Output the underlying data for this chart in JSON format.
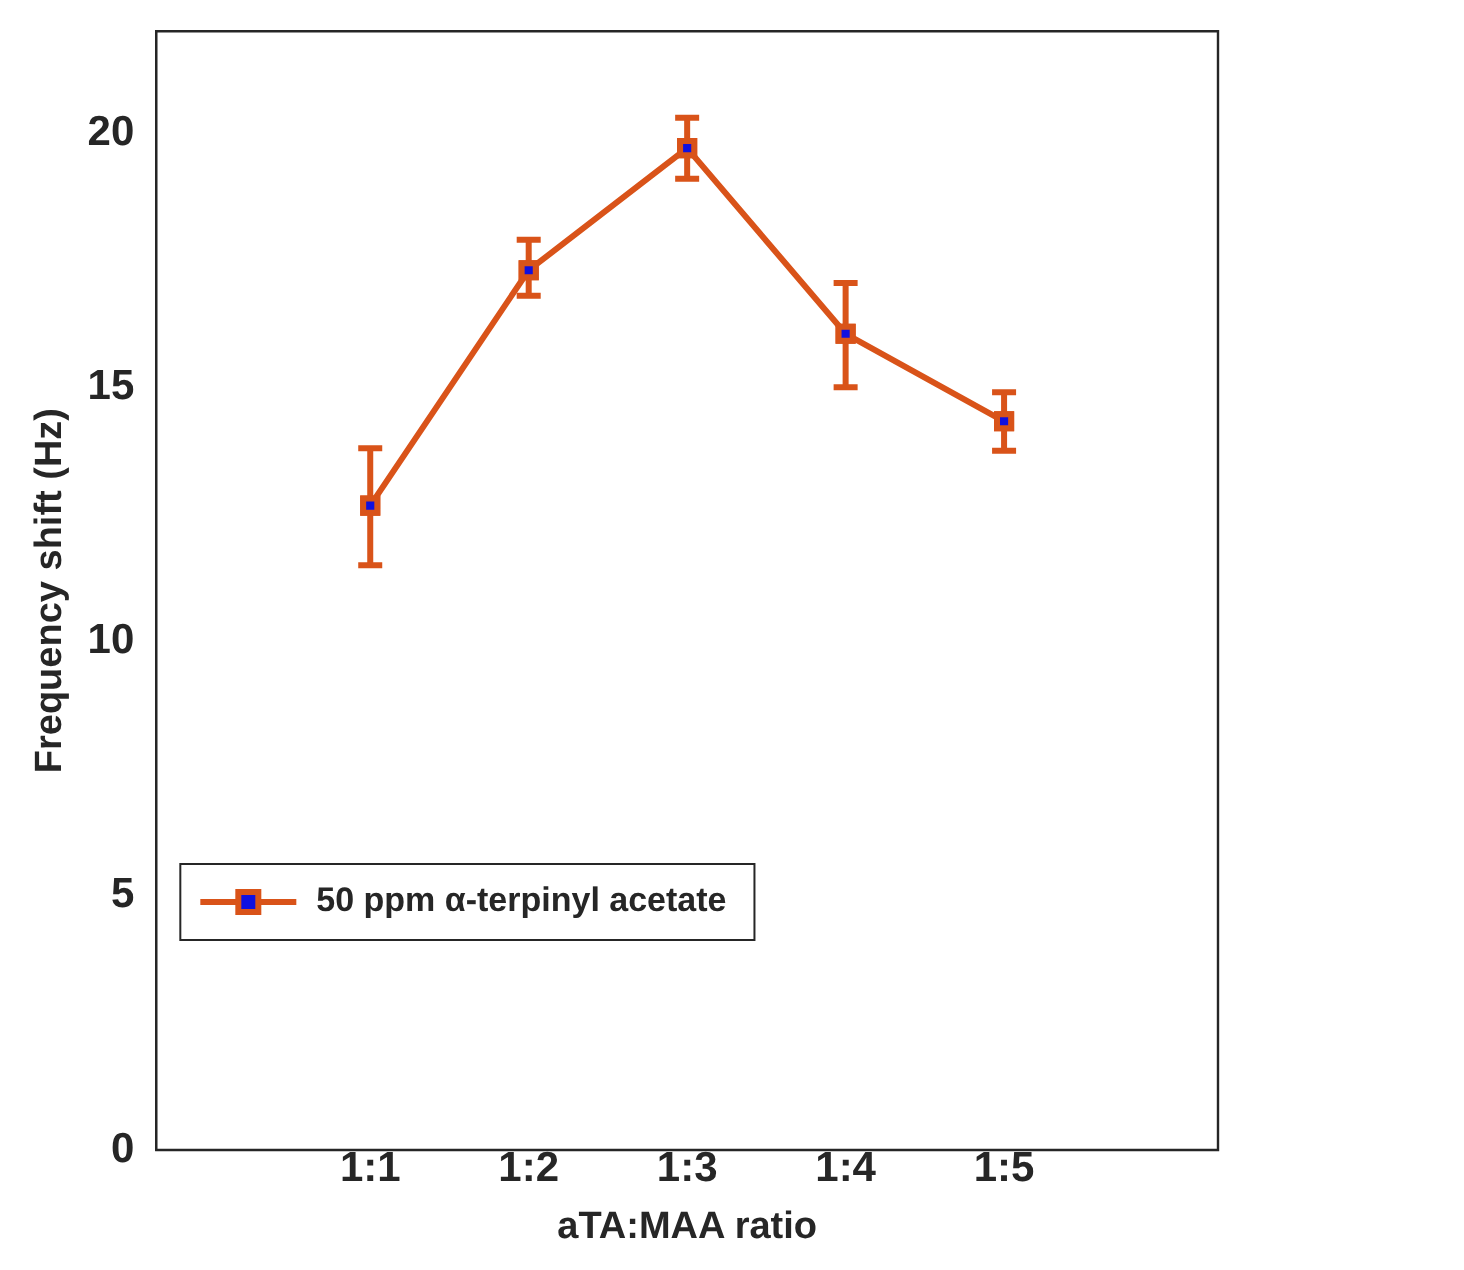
{
  "chart_data": {
    "type": "line",
    "xlabel": "aTA:MAA ratio",
    "ylabel": "Frequency shift (Hz)",
    "categories": [
      "1:1",
      "1:2",
      "1:3",
      "1:4",
      "1:5"
    ],
    "series": [
      {
        "name": "50 ppm α-terpinyl acetate",
        "color": "#d95319",
        "values": [
          12.67,
          17.3,
          19.7,
          16.05,
          14.33
        ],
        "errors": [
          [
            11.5,
            13.8
          ],
          [
            16.8,
            17.9
          ],
          [
            19.1,
            20.3
          ],
          [
            15.0,
            17.05
          ],
          [
            13.75,
            14.9
          ]
        ]
      }
    ],
    "ylim": [
      0,
      22
    ],
    "yticks": [
      0,
      5,
      10,
      15,
      20
    ],
    "grid": false,
    "legend": "bottom left",
    "marker": "square",
    "line_style": "solid"
  }
}
